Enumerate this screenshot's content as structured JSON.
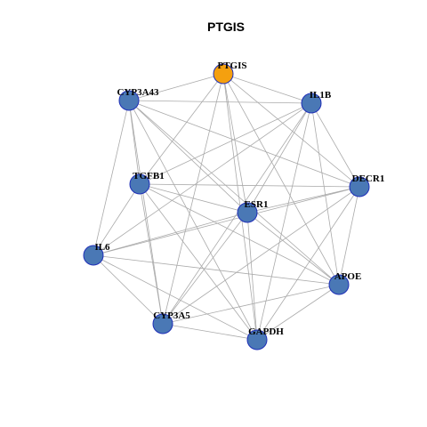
{
  "title": "PTGIS",
  "colors": {
    "center_node": "#f5a00f",
    "node": "#4a78b5",
    "node_border": "#1f2fb8",
    "edge": "#aaaaaa"
  },
  "nodes": [
    {
      "id": "PTGIS",
      "label": "PTGIS",
      "center": true
    },
    {
      "id": "IL1B",
      "label": "IL1B"
    },
    {
      "id": "DECR1",
      "label": "DECR1"
    },
    {
      "id": "APOE",
      "label": "APOE"
    },
    {
      "id": "GAPDH",
      "label": "GAPDH"
    },
    {
      "id": "CYP3A5",
      "label": "CYP3A5"
    },
    {
      "id": "IL6",
      "label": "IL6"
    },
    {
      "id": "TGFB1",
      "label": "TGFB1"
    },
    {
      "id": "CYP3A43",
      "label": "CYP3A43"
    },
    {
      "id": "ESR1",
      "label": "ESR1"
    }
  ],
  "edges": [
    [
      "PTGIS",
      "CYP3A43"
    ],
    [
      "PTGIS",
      "IL1B"
    ],
    [
      "PTGIS",
      "DECR1"
    ],
    [
      "PTGIS",
      "APOE"
    ],
    [
      "PTGIS",
      "GAPDH"
    ],
    [
      "PTGIS",
      "CYP3A5"
    ],
    [
      "PTGIS",
      "TGFB1"
    ],
    [
      "PTGIS",
      "ESR1"
    ],
    [
      "CYP3A43",
      "IL1B"
    ],
    [
      "CYP3A43",
      "DECR1"
    ],
    [
      "CYP3A43",
      "TGFB1"
    ],
    [
      "CYP3A43",
      "IL6"
    ],
    [
      "CYP3A43",
      "ESR1"
    ],
    [
      "CYP3A43",
      "CYP3A5"
    ],
    [
      "CYP3A43",
      "APOE"
    ],
    [
      "CYP3A43",
      "GAPDH"
    ],
    [
      "IL1B",
      "DECR1"
    ],
    [
      "IL1B",
      "TGFB1"
    ],
    [
      "IL1B",
      "ESR1"
    ],
    [
      "IL1B",
      "APOE"
    ],
    [
      "IL1B",
      "GAPDH"
    ],
    [
      "IL1B",
      "CYP3A5"
    ],
    [
      "IL1B",
      "IL6"
    ],
    [
      "TGFB1",
      "DECR1"
    ],
    [
      "TGFB1",
      "ESR1"
    ],
    [
      "TGFB1",
      "IL6"
    ],
    [
      "TGFB1",
      "CYP3A5"
    ],
    [
      "TGFB1",
      "APOE"
    ],
    [
      "TGFB1",
      "GAPDH"
    ],
    [
      "DECR1",
      "ESR1"
    ],
    [
      "DECR1",
      "APOE"
    ],
    [
      "DECR1",
      "GAPDH"
    ],
    [
      "DECR1",
      "IL6"
    ],
    [
      "DECR1",
      "CYP3A5"
    ],
    [
      "ESR1",
      "IL6"
    ],
    [
      "ESR1",
      "APOE"
    ],
    [
      "ESR1",
      "GAPDH"
    ],
    [
      "ESR1",
      "CYP3A5"
    ],
    [
      "IL6",
      "APOE"
    ],
    [
      "IL6",
      "CYP3A5"
    ],
    [
      "IL6",
      "GAPDH"
    ],
    [
      "APOE",
      "GAPDH"
    ],
    [
      "APOE",
      "CYP3A5"
    ],
    [
      "CYP3A5",
      "GAPDH"
    ]
  ]
}
